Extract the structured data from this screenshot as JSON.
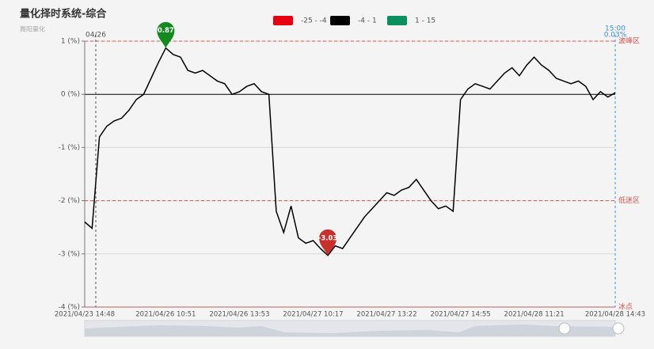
{
  "chart_data": {
    "type": "line",
    "title": "量化择时系统-综合",
    "subtitle": "舞阳量化",
    "categories": [
      "2021/04/23 14:48",
      null,
      null,
      null,
      null,
      null,
      null,
      null,
      null,
      null,
      null,
      "2021/04/26 10:51",
      null,
      null,
      null,
      null,
      null,
      null,
      null,
      null,
      null,
      "2021/04/26 13:53",
      null,
      null,
      null,
      null,
      null,
      null,
      null,
      null,
      null,
      "2021/04/27 10:17",
      null,
      null,
      null,
      null,
      null,
      null,
      null,
      null,
      null,
      "2021/04/27 13:22",
      null,
      null,
      null,
      null,
      null,
      null,
      null,
      null,
      null,
      "2021/04/27 14:55",
      null,
      null,
      null,
      null,
      null,
      null,
      null,
      null,
      null,
      "2021/04/28 11:21",
      null,
      null,
      null,
      null,
      null,
      null,
      null,
      null,
      null,
      null,
      "2021/04/28 14:43"
    ],
    "values": [
      -2.4,
      -2.52,
      -0.8,
      -0.6,
      -0.5,
      -0.45,
      -0.3,
      -0.1,
      0.0,
      0.3,
      0.6,
      0.87,
      0.75,
      0.7,
      0.45,
      0.4,
      0.45,
      0.35,
      0.25,
      0.2,
      0.0,
      0.05,
      0.15,
      0.2,
      0.05,
      0.0,
      -2.2,
      -2.6,
      -2.1,
      -2.7,
      -2.8,
      -2.75,
      -2.9,
      -3.03,
      -2.85,
      -2.9,
      -2.7,
      -2.5,
      -2.3,
      -2.15,
      -2.0,
      -1.85,
      -1.9,
      -1.8,
      -1.75,
      -1.6,
      -1.8,
      -2.0,
      -2.15,
      -2.1,
      -2.2,
      -0.1,
      0.1,
      0.2,
      0.15,
      0.1,
      0.25,
      0.4,
      0.5,
      0.35,
      0.55,
      0.7,
      0.55,
      0.45,
      0.3,
      0.25,
      0.2,
      0.25,
      0.15,
      -0.1,
      0.05,
      -0.05,
      0.03
    ],
    "ylim": [
      -4,
      1
    ],
    "yticks": [
      {
        "value": -4,
        "label": "-4 (%)"
      },
      {
        "value": -3,
        "label": "-3 (%)"
      },
      {
        "value": -2,
        "label": "-2 (%)"
      },
      {
        "value": -1,
        "label": "-1 (%)"
      },
      {
        "value": 0,
        "label": "0 (%)"
      },
      {
        "value": 1,
        "label": "1 (%)"
      }
    ],
    "grid": true,
    "pieces": [
      {
        "min": -25,
        "max": -4,
        "label": "-25 - -4",
        "color": "#e60012"
      },
      {
        "min": -4,
        "max": 1,
        "label": "-4 - 1",
        "color": "#000000"
      },
      {
        "min": 1,
        "max": 15,
        "label": "1 - 15",
        "color": "#0a8f5f"
      }
    ],
    "mark_lines": [
      {
        "value": 1,
        "label": "波峰区"
      },
      {
        "value": -2,
        "label": "低迷区"
      },
      {
        "value": -4,
        "label": "冰点"
      }
    ],
    "mark_line_color": "#d9534f",
    "markpoint_colors": {
      "max": "#138a20",
      "min": "#c9302c"
    },
    "day_marker": "04/26",
    "last_time": "15:00",
    "last_value": {
      "value": 0.03,
      "label": "0.03%"
    }
  }
}
